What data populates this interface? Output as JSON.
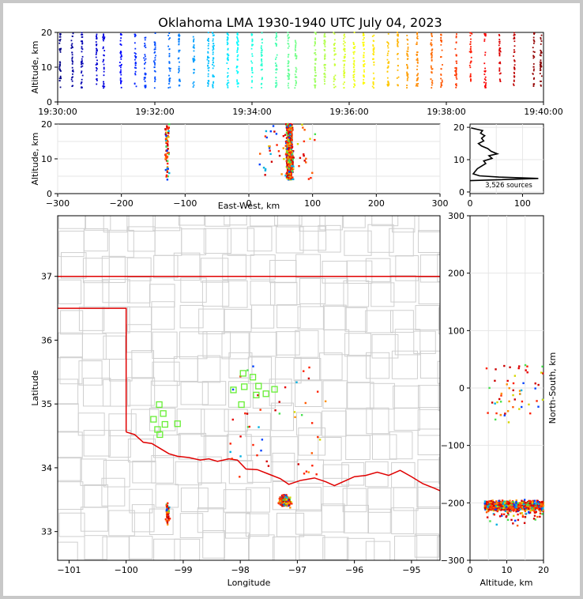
{
  "title": "Oklahoma LMA 1930-1940 UTC July 04, 2023",
  "chart_data": [
    {
      "id": "alt-time",
      "type": "scatter",
      "ylabel": "Altitude, km",
      "xlabel": "",
      "x_ticks": [
        "19:30:00",
        "19:32:00",
        "19:34:00",
        "19:36:00",
        "19:38:00",
        "19:40:00"
      ],
      "xlim_minutes": [
        0,
        10
      ],
      "ylim": [
        0,
        20
      ],
      "y_ticks": [
        "0",
        "10",
        "20"
      ],
      "color_by": "time",
      "source_columns_minutes": [
        0.05,
        0.3,
        0.5,
        0.8,
        0.95,
        1.3,
        1.6,
        1.8,
        2.0,
        2.3,
        2.5,
        2.8,
        3.1,
        3.2,
        3.5,
        3.7,
        4.0,
        4.2,
        4.5,
        4.75,
        4.9,
        5.3,
        5.5,
        5.7,
        5.9,
        6.1,
        6.3,
        6.5,
        6.8,
        7.0,
        7.2,
        7.4,
        7.7,
        7.9,
        8.2,
        8.5,
        8.8,
        9.1,
        9.4,
        9.8,
        9.95
      ]
    },
    {
      "id": "alt-ew",
      "type": "scatter",
      "xlabel": "East-West, km",
      "ylabel": "Altitude, km",
      "xlim": [
        -300,
        300
      ],
      "ylim": [
        0,
        20
      ],
      "x_ticks": [
        "−300",
        "−200",
        "−100",
        "0",
        "100",
        "200",
        "300"
      ],
      "y_ticks": [
        "0",
        "10",
        "20"
      ]
    },
    {
      "id": "histogram",
      "type": "line",
      "xlim": [
        0,
        140
      ],
      "ylim": [
        0,
        21
      ],
      "x_ticks": [
        "0",
        "100"
      ],
      "y_ticks": [
        "0",
        "10",
        "20"
      ],
      "annotation": "3,526 sources",
      "profile": [
        [
          0,
          3.5
        ],
        [
          130,
          4.2
        ],
        [
          55,
          4.6
        ],
        [
          18,
          5.0
        ],
        [
          6,
          5.6
        ],
        [
          10,
          6.4
        ],
        [
          14,
          7.2
        ],
        [
          22,
          8.0
        ],
        [
          30,
          8.8
        ],
        [
          26,
          9.6
        ],
        [
          42,
          10.4
        ],
        [
          36,
          11.2
        ],
        [
          52,
          11.8
        ],
        [
          40,
          12.6
        ],
        [
          34,
          13.4
        ],
        [
          22,
          14.2
        ],
        [
          16,
          15.0
        ],
        [
          26,
          15.8
        ],
        [
          22,
          16.6
        ],
        [
          28,
          17.4
        ],
        [
          20,
          18.2
        ],
        [
          24,
          19.0
        ],
        [
          2,
          19.8
        ]
      ]
    },
    {
      "id": "plan-map",
      "type": "scatter",
      "xlabel": "Longitude",
      "ylabel": "Latitude",
      "xlim": [
        -101.2,
        -94.5
      ],
      "ylim": [
        32.55,
        37.95
      ],
      "x_ticks": [
        "−101",
        "−100",
        "−99",
        "−98",
        "−97",
        "−96",
        "−95"
      ],
      "y_ticks": [
        "33",
        "34",
        "35",
        "36",
        "37"
      ],
      "stations": [
        [
          -97.95,
          35.48
        ],
        [
          -97.78,
          35.42
        ],
        [
          -98.12,
          35.22
        ],
        [
          -97.93,
          35.27
        ],
        [
          -97.72,
          35.14
        ],
        [
          -97.55,
          35.16
        ],
        [
          -97.4,
          35.23
        ],
        [
          -97.98,
          34.99
        ],
        [
          -97.68,
          35.28
        ],
        [
          -99.42,
          34.99
        ],
        [
          -99.35,
          34.85
        ],
        [
          -99.52,
          34.76
        ],
        [
          -99.32,
          34.68
        ],
        [
          -99.1,
          34.69
        ],
        [
          -99.45,
          34.6
        ],
        [
          -99.41,
          34.52
        ]
      ]
    },
    {
      "id": "alt-ns",
      "type": "scatter",
      "xlabel": "Altitude, km",
      "ylabel": "North-South, km",
      "xlim": [
        0,
        20
      ],
      "ylim": [
        -300,
        300
      ],
      "x_ticks": [
        "0",
        "10",
        "20"
      ],
      "y_ticks": [
        "−300",
        "−200",
        "−100",
        "0",
        "100",
        "200",
        "300"
      ]
    }
  ]
}
